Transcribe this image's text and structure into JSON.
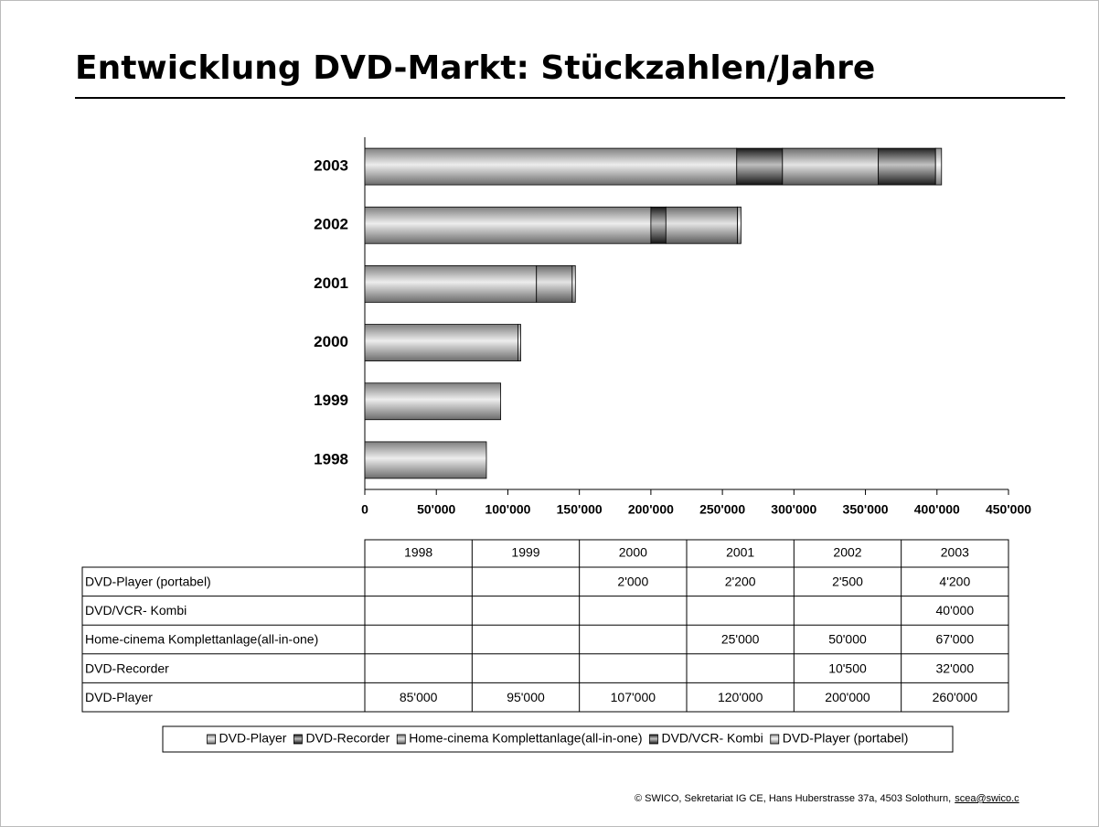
{
  "chart_data": {
    "type": "bar",
    "orientation": "horizontal",
    "stacked": true,
    "title": "Entwicklung DVD-Markt: Stückzahlen/Jahre",
    "categories": [
      "1998",
      "1999",
      "2000",
      "2001",
      "2002",
      "2003"
    ],
    "series": [
      {
        "name": "DVD-Player",
        "color": "#c4c4c4",
        "values": [
          85000,
          95000,
          107000,
          120000,
          200000,
          260000
        ],
        "value_labels": [
          "85'000",
          "95'000",
          "107'000",
          "120'000",
          "200'000",
          "260'000"
        ]
      },
      {
        "name": "DVD-Recorder",
        "color": "#262626",
        "values": [
          null,
          null,
          null,
          null,
          10500,
          32000
        ],
        "value_labels": [
          null,
          null,
          null,
          null,
          "10'500",
          "32'000"
        ]
      },
      {
        "name": "Home-cinema Komplettanlage(all-in-one)",
        "color": "#a6a6a6",
        "values": [
          null,
          null,
          null,
          25000,
          50000,
          67000
        ],
        "value_labels": [
          null,
          null,
          null,
          "25'000",
          "50'000",
          "67'000"
        ]
      },
      {
        "name": "DVD/VCR- Kombi",
        "color": "#333333",
        "values": [
          null,
          null,
          null,
          null,
          null,
          40000
        ],
        "value_labels": [
          null,
          null,
          null,
          null,
          null,
          "40'000"
        ]
      },
      {
        "name": "DVD-Player (portabel)",
        "color": "#e2e2e2",
        "values": [
          null,
          null,
          2000,
          2200,
          2500,
          4200
        ],
        "value_labels": [
          null,
          null,
          "2'000",
          "2'200",
          "2'500",
          "4'200"
        ]
      }
    ],
    "xlim": [
      0,
      450000
    ],
    "xticks": [
      0,
      {
        "value": 50000,
        "label": "50'000"
      },
      {
        "value": 100000,
        "label": "100'000"
      },
      {
        "value": 150000,
        "label": "150'000"
      },
      {
        "value": 200000,
        "label": "200'000"
      },
      {
        "value": 250000,
        "label": "250'000"
      },
      {
        "value": 300000,
        "label": "300'000"
      },
      {
        "value": 350000,
        "label": "350'000"
      },
      {
        "value": 400000,
        "label": "400'000"
      },
      {
        "value": 450000,
        "label": "450'000"
      }
    ],
    "grid": false,
    "legend": "bottom",
    "data_table": true
  },
  "footer": {
    "text": "© SWICO, Sekretariat IG CE, Hans Huberstrasse 37a, 4503 Solothurn,",
    "email": "scea@swico.c"
  }
}
